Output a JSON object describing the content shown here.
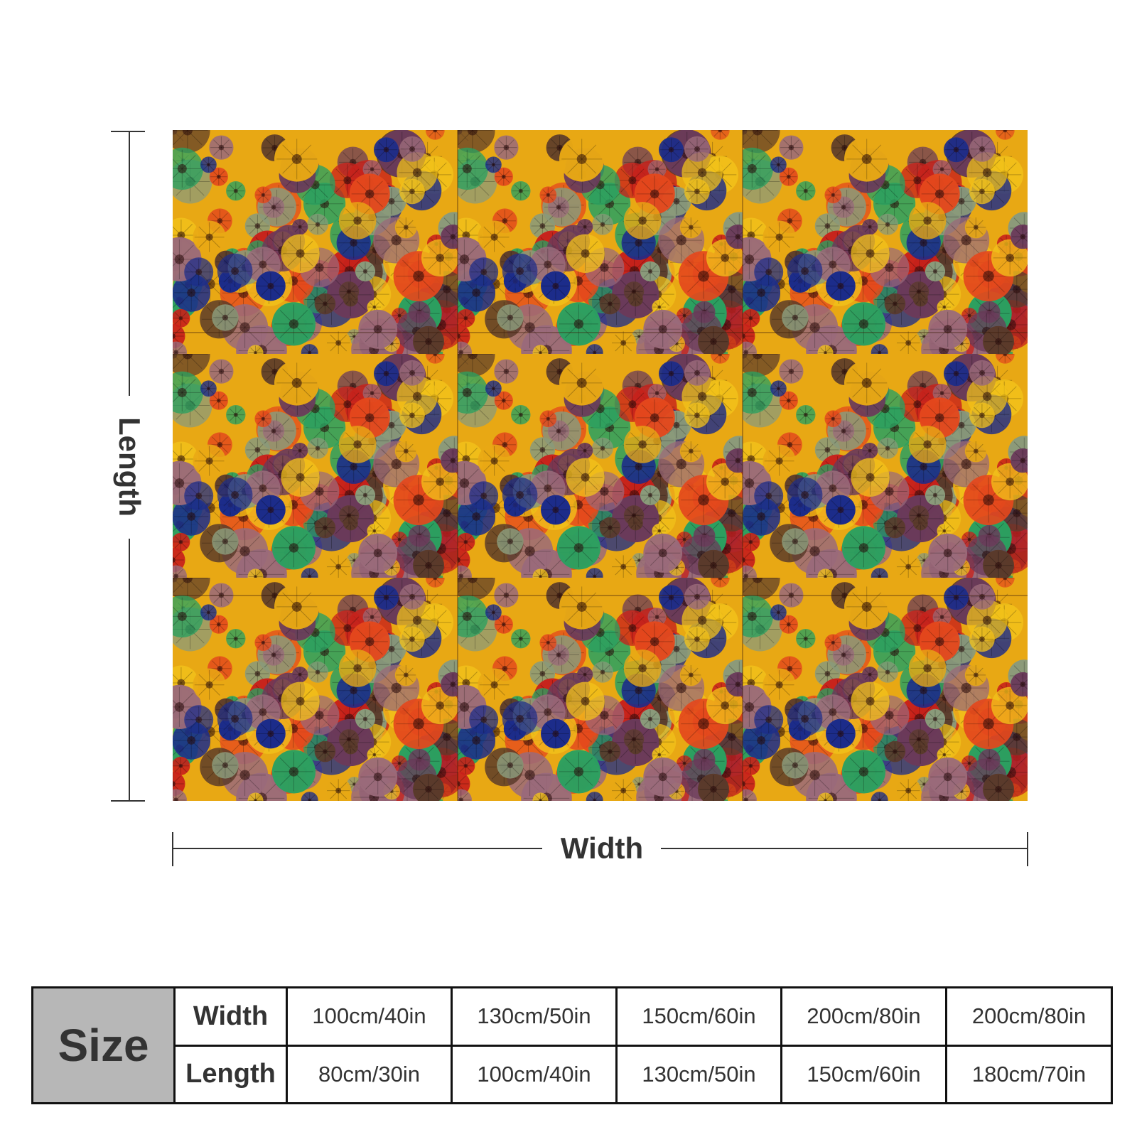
{
  "diagram": {
    "length_label": "Length",
    "width_label": "Width"
  },
  "image": {
    "subject": "tiled pattern of colorful glass flowers",
    "palette": [
      "#e8a814",
      "#f2c21a",
      "#c8201a",
      "#e4481c",
      "#1c2c8a",
      "#6a3a5a",
      "#9a6a7a",
      "#2aa060",
      "#5a3a2a",
      "#8a9a7a"
    ]
  },
  "size_table": {
    "header": "Size",
    "width_label": "Width",
    "length_label": "Length",
    "widths": [
      "100cm/40in",
      "130cm/50in",
      "150cm/60in",
      "200cm/80in",
      "200cm/80in"
    ],
    "lengths": [
      "80cm/30in",
      "100cm/40in",
      "130cm/50in",
      "150cm/60in",
      "180cm/70in"
    ]
  }
}
